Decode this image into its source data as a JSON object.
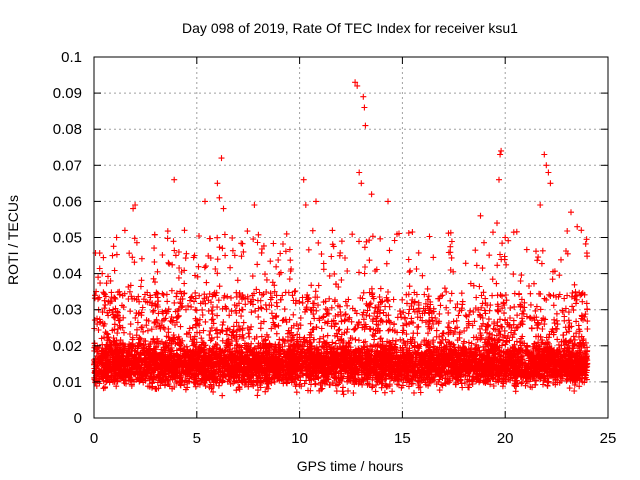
{
  "chart_data": {
    "type": "scatter",
    "title": "Day 098 of 2019, Rate Of TEC Index for receiver ksu1",
    "xlabel": "GPS time / hours",
    "ylabel": "ROTI / TECUs",
    "xlim": [
      0,
      25
    ],
    "ylim": [
      0,
      0.1
    ],
    "xticks": [
      0,
      5,
      10,
      15,
      20,
      25
    ],
    "xtick_labels": [
      "0",
      "5",
      "10",
      "15",
      "20",
      "25"
    ],
    "yticks": [
      0,
      0.01,
      0.02,
      0.03,
      0.04,
      0.05,
      0.06,
      0.07,
      0.08,
      0.09,
      0.1
    ],
    "ytick_labels": [
      "0",
      "0.01",
      "0.02",
      "0.03",
      "0.04",
      "0.05",
      "0.06",
      "0.07",
      "0.08",
      "0.09",
      "0.1"
    ],
    "grid": true,
    "marker": "+",
    "color": "#ff0000",
    "data_time_range": [
      0,
      24
    ],
    "series": [
      {
        "name": "ROTI",
        "description": "dense band of points, mostly 0.005-0.025 TECU/s, scattered spikes",
        "points": [
          [
            0.05,
            0.034
          ],
          [
            0.1,
            0.035
          ],
          [
            0.2,
            0.039
          ],
          [
            0.4,
            0.04
          ],
          [
            0.9,
            0.045
          ],
          [
            1.1,
            0.05
          ],
          [
            1.9,
            0.058
          ],
          [
            2.0,
            0.059
          ],
          [
            3.9,
            0.066
          ],
          [
            4.4,
            0.052
          ],
          [
            5.4,
            0.06
          ],
          [
            6.0,
            0.065
          ],
          [
            6.1,
            0.061
          ],
          [
            6.2,
            0.072
          ],
          [
            6.3,
            0.058
          ],
          [
            7.8,
            0.059
          ],
          [
            10.2,
            0.066
          ],
          [
            10.3,
            0.059
          ],
          [
            10.8,
            0.06
          ],
          [
            12.7,
            0.093
          ],
          [
            12.8,
            0.092
          ],
          [
            12.9,
            0.068
          ],
          [
            13.0,
            0.065
          ],
          [
            13.1,
            0.089
          ],
          [
            13.15,
            0.086
          ],
          [
            13.2,
            0.081
          ],
          [
            13.5,
            0.062
          ],
          [
            14.3,
            0.06
          ],
          [
            18.8,
            0.056
          ],
          [
            19.6,
            0.054
          ],
          [
            19.7,
            0.066
          ],
          [
            19.75,
            0.073
          ],
          [
            19.8,
            0.074
          ],
          [
            20.0,
            0.05
          ],
          [
            21.7,
            0.059
          ],
          [
            21.9,
            0.073
          ],
          [
            22.0,
            0.07
          ],
          [
            22.1,
            0.068
          ],
          [
            22.2,
            0.065
          ],
          [
            23.2,
            0.057
          ],
          [
            23.5,
            0.053
          ],
          [
            23.7,
            0.052
          ]
        ]
      }
    ]
  }
}
